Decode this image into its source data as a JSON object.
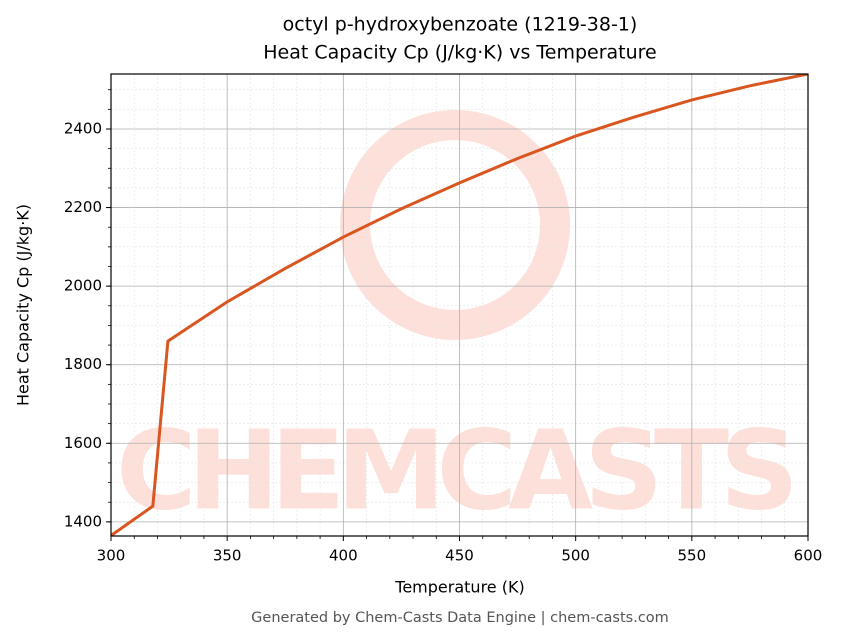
{
  "chart_data": {
    "type": "line",
    "title": "octyl p-hydroxybenzoate (1219-38-1)",
    "subtitle": "Heat Capacity Cp (J/kg·K) vs Temperature",
    "x_label": "Temperature (K)",
    "y_label": "Heat Capacity Cp (J/kg·K)",
    "watermark": "CHEMCASTS",
    "footer": "Generated by Chem-Casts Data Engine | chem-casts.com",
    "x": [
      300,
      318,
      324.5,
      350,
      375,
      400,
      425,
      450,
      475,
      500,
      525,
      550,
      575,
      600
    ],
    "series": [
      {
        "name": "Cp",
        "color": "#d95620",
        "values": [
          1365,
          1440,
          1860,
          1960,
          2045,
          2125,
          2197,
          2263,
          2325,
          2382,
          2430,
          2474,
          2510,
          2540
        ]
      }
    ],
    "xlim": [
      300,
      600
    ],
    "xticks": [
      300,
      350,
      400,
      450,
      500,
      550,
      600
    ],
    "ylim": [
      1364,
      2540
    ],
    "yticks": [
      1400,
      1600,
      1800,
      2000,
      2200,
      2400
    ],
    "grid": true,
    "minor_grid": true
  }
}
